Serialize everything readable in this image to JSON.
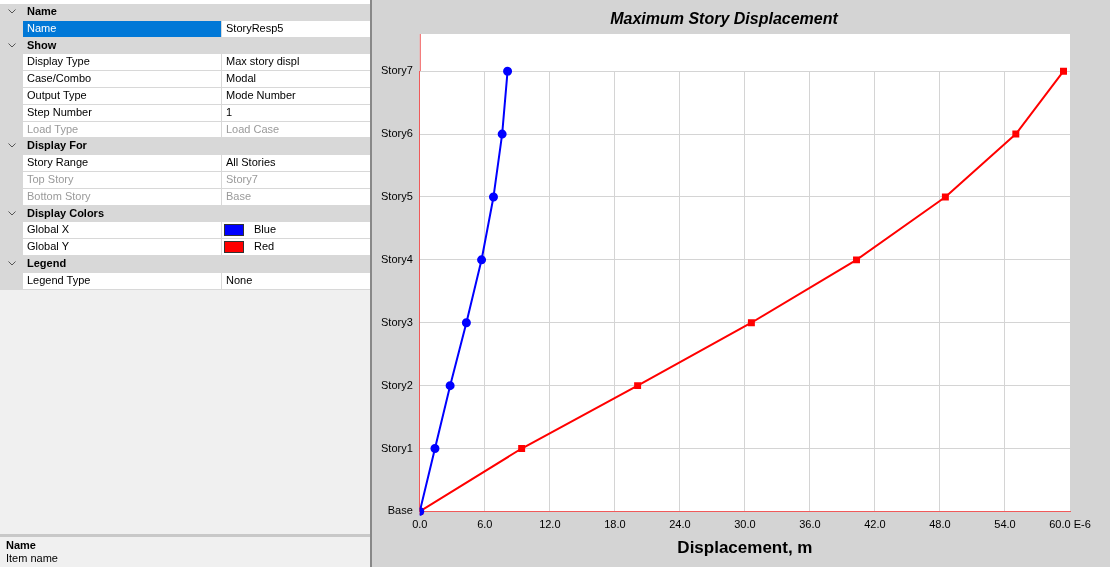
{
  "chart_data": [
    {
      "type": "other",
      "annotations": [
        "Name",
        "Name",
        "StoryResp5",
        "Show",
        "Display Type",
        "Max story displ",
        "Case/Combo",
        "Modal",
        "Output Type",
        "Mode Number",
        "Step Number",
        "1",
        "Load Type",
        "Load Case",
        "Display For",
        "Story Range",
        "All Stories",
        "Top Story",
        "Story7",
        "Bottom Story",
        "Base",
        "Display Colors",
        "Global X",
        "Blue",
        "Global Y",
        "Red",
        "Legend",
        "Legend Type",
        "None",
        "Name",
        "Item name"
      ]
    },
    {
      "type": "line",
      "title": "Maximum Story Displacement",
      "xlabel": "Displacement, m",
      "orientation": "horizontal",
      "categories": [
        "Story7",
        "Story6",
        "Story5",
        "Story4",
        "Story3",
        "Story2",
        "Story1",
        "Base"
      ],
      "series": [
        {
          "color": "#0000ff",
          "marker": "circle",
          "values": [
            8.1,
            7.6,
            6.8,
            5.7,
            4.3,
            2.8,
            1.4,
            0
          ]
        },
        {
          "color": "#ff0000",
          "marker": "square",
          "values": [
            59.4,
            55.0,
            48.5,
            40.3,
            30.6,
            20.1,
            9.4,
            0
          ]
        }
      ],
      "xlim": [
        0,
        60
      ],
      "xticks": [
        {
          "value": 0,
          "label": "0.0"
        },
        {
          "value": 6,
          "label": "6.0"
        },
        {
          "value": 12,
          "label": "12.0"
        },
        {
          "value": 18,
          "label": "18.0"
        },
        {
          "value": 24,
          "label": "24.0"
        },
        {
          "value": 30,
          "label": "30.0"
        },
        {
          "value": 36,
          "label": "36.0"
        },
        {
          "value": 42,
          "label": "42.0"
        },
        {
          "value": 48,
          "label": "48.0"
        },
        {
          "value": 54,
          "label": "54.0"
        },
        {
          "value": 60,
          "label": "60.0 E-6"
        }
      ],
      "grid": true,
      "legend": false,
      "line_style": "solid"
    }
  ]
}
